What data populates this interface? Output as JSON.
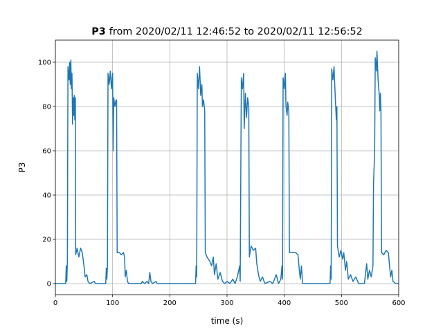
{
  "chart_data": {
    "type": "line",
    "title_bold": "P3",
    "title": "from 2020/02/11 12:46:52 to 2020/02/11 12:56:52",
    "xlabel": "time (s)",
    "ylabel": "P3",
    "xlim": [
      0,
      600
    ],
    "ylim": [
      -5,
      110
    ],
    "xticks": [
      0,
      100,
      200,
      300,
      400,
      500,
      600
    ],
    "yticks": [
      0,
      20,
      40,
      60,
      80,
      100
    ],
    "grid": true,
    "series": [
      {
        "name": "P3",
        "color": "#1f77b4",
        "x": [
          0,
          18,
          19,
          20,
          21,
          22,
          24,
          25,
          26,
          27,
          28,
          29,
          30,
          31,
          32,
          33,
          34,
          35,
          35.5,
          38,
          41,
          44,
          47,
          50,
          52,
          55,
          57,
          60,
          68,
          70,
          88,
          89,
          90,
          91,
          92,
          94,
          96,
          98,
          100,
          101,
          102,
          104,
          106,
          107,
          108,
          112,
          115,
          119,
          121,
          122,
          124,
          126,
          128,
          150,
          152,
          156,
          160,
          163,
          165,
          167,
          170,
          176,
          178,
          245,
          246,
          247,
          248,
          250,
          252,
          254,
          256,
          257,
          259,
          261,
          262,
          265,
          270,
          273,
          276,
          278,
          281,
          284,
          288,
          292,
          296,
          300,
          305,
          310,
          314,
          318,
          322,
          323,
          325,
          327,
          329,
          330,
          332,
          334,
          336,
          338,
          339,
          342,
          346,
          350,
          352,
          355,
          358,
          362,
          366,
          375,
          380,
          386,
          390,
          394,
          396,
          397,
          398,
          400,
          402,
          403,
          405,
          406,
          408,
          409,
          414,
          420,
          424,
          426,
          428,
          430,
          432,
          480,
          481,
          482,
          483,
          485,
          487,
          489,
          491,
          492,
          493,
          496,
          499,
          502,
          504,
          507,
          509,
          512,
          516,
          520,
          525,
          530,
          540,
          544,
          546,
          549,
          552,
          555,
          556,
          558,
          559,
          561,
          562,
          564,
          566,
          567,
          568,
          569,
          570,
          574,
          578,
          582,
          584,
          586,
          588,
          590,
          595,
          600
        ],
        "values": [
          0,
          0,
          8,
          1,
          10,
          98,
          92,
          100,
          90,
          101,
          88,
          95,
          72,
          84,
          76,
          85,
          74,
          84,
          13,
          16,
          12,
          16,
          14,
          8,
          3,
          4,
          1,
          0,
          1,
          0,
          0,
          7,
          2,
          8,
          95,
          90,
          96,
          88,
          95,
          60,
          84,
          80,
          83,
          83,
          14,
          14,
          13,
          14,
          12,
          3,
          6,
          1,
          0,
          0,
          1,
          0,
          1,
          0,
          5,
          1,
          0,
          1,
          0,
          0,
          8,
          3,
          95,
          88,
          98,
          85,
          90,
          80,
          83,
          78,
          14,
          12,
          10,
          8,
          12,
          4,
          9,
          2,
          5,
          1,
          0,
          1,
          0,
          2,
          0,
          3,
          8,
          1,
          93,
          88,
          95,
          70,
          86,
          75,
          84,
          80,
          12,
          17,
          15,
          16,
          9,
          4,
          1,
          3,
          0,
          1,
          0,
          4,
          0,
          2,
          8,
          2,
          93,
          88,
          95,
          80,
          76,
          82,
          78,
          14,
          14,
          14,
          13,
          7,
          2,
          8,
          0,
          0,
          8,
          2,
          97,
          92,
          98,
          85,
          74,
          80,
          17,
          12,
          15,
          11,
          14,
          6,
          10,
          2,
          4,
          1,
          3,
          0,
          0,
          9,
          2,
          6,
          3,
          8,
          45,
          60,
          102,
          96,
          105,
          92,
          85,
          78,
          86,
          78,
          14,
          13,
          15,
          14,
          8,
          3,
          6,
          1,
          0,
          0
        ]
      }
    ]
  }
}
